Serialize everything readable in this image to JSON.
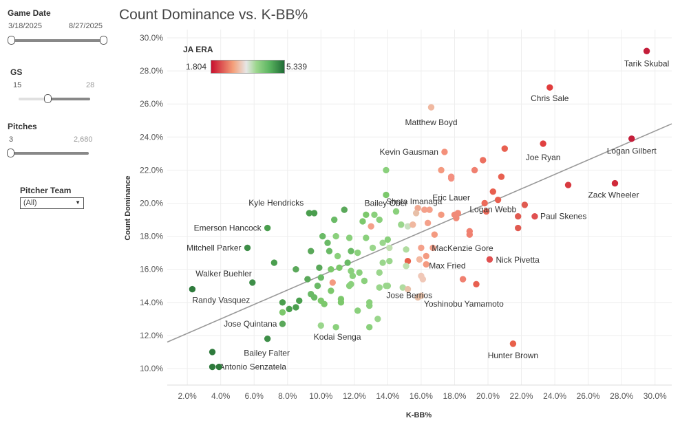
{
  "filters": {
    "game_date": {
      "title": "Game Date",
      "start": "3/18/2025",
      "end": "8/27/2025"
    },
    "gs": {
      "title": "GS",
      "min": "15",
      "max": "28",
      "value": 0.4
    },
    "pitches": {
      "title": "Pitches",
      "min": "3",
      "max": "2,680",
      "value": 0.0
    },
    "pitcher_team": {
      "title": "Pitcher Team",
      "selected": "(All)"
    }
  },
  "legend": {
    "title": "JA ERA",
    "min_label": "1.804",
    "max_label": "5.339",
    "colors": [
      "#c8102e",
      "#f4a07a",
      "#e6e6e6",
      "#9bd68c",
      "#1f6b35"
    ]
  },
  "chart_data": {
    "type": "scatter",
    "title": "Count Dominance vs. K-BB%",
    "xlabel": "K-BB%",
    "ylabel": "Count Dominance",
    "xlim": [
      0.8,
      31.0
    ],
    "ylim": [
      9.0,
      30.5
    ],
    "xticks": [
      "2.0%",
      "4.0%",
      "6.0%",
      "8.0%",
      "10.0%",
      "12.0%",
      "14.0%",
      "16.0%",
      "18.0%",
      "20.0%",
      "22.0%",
      "24.0%",
      "26.0%",
      "28.0%",
      "30.0%"
    ],
    "yticks": [
      "10.0%",
      "12.0%",
      "14.0%",
      "16.0%",
      "18.0%",
      "20.0%",
      "22.0%",
      "24.0%",
      "26.0%",
      "28.0%",
      "30.0%"
    ],
    "trend_line": {
      "x": [
        0.8,
        31.0
      ],
      "y": [
        11.6,
        24.8
      ]
    },
    "labeled_points": [
      {
        "name": "Tarik Skubal",
        "x": 29.5,
        "y": 29.2,
        "color": "#c41e3a"
      },
      {
        "name": "Chris Sale",
        "x": 23.7,
        "y": 27.0,
        "color": "#e03c3c"
      },
      {
        "name": "Matthew Boyd",
        "x": 16.6,
        "y": 25.8,
        "color": "#f0b8a0"
      },
      {
        "name": "Logan Gilbert",
        "x": 28.6,
        "y": 23.9,
        "color": "#c41e3a"
      },
      {
        "name": "Kevin Gausman",
        "x": 17.4,
        "y": 23.1,
        "color": "#f4907a"
      },
      {
        "name": "Joe Ryan",
        "x": 23.3,
        "y": 23.6,
        "color": "#e04040"
      },
      {
        "name": "Bailey Ober",
        "x": 13.9,
        "y": 20.5,
        "color": "#7cc86c"
      },
      {
        "name": "Eric Lauer",
        "x": 17.8,
        "y": 21.5,
        "color": "#f49080"
      },
      {
        "name": "Logan Webb",
        "x": 20.3,
        "y": 20.7,
        "color": "#e86050"
      },
      {
        "name": "Zack Wheeler",
        "x": 27.6,
        "y": 21.2,
        "color": "#d02a3a"
      },
      {
        "name": "Kyle Hendricks",
        "x": 9.3,
        "y": 19.4,
        "color": "#4a9e4e"
      },
      {
        "name": "Shota Imanaga",
        "x": 15.7,
        "y": 19.4,
        "color": "#e8c0a8"
      },
      {
        "name": "Emerson Hancock",
        "x": 6.8,
        "y": 18.5,
        "color": "#4a9e4e"
      },
      {
        "name": "Paul Skenes",
        "x": 22.8,
        "y": 19.2,
        "color": "#e05050"
      },
      {
        "name": "Mitchell Parker",
        "x": 5.6,
        "y": 17.3,
        "color": "#3e8e48"
      },
      {
        "name": "MacKenzie Gore",
        "x": 16.8,
        "y": 18.1,
        "color": "#f49a80"
      },
      {
        "name": "Walker Buehler",
        "x": 5.9,
        "y": 15.2,
        "color": "#3e8e48"
      },
      {
        "name": "Max Fried",
        "x": 16.3,
        "y": 16.3,
        "color": "#f49a80"
      },
      {
        "name": "Nick Pivetta",
        "x": 20.1,
        "y": 16.6,
        "color": "#e05050"
      },
      {
        "name": "Randy Vasquez",
        "x": 2.3,
        "y": 14.8,
        "color": "#2e7a3c"
      },
      {
        "name": "Yoshinobu Yamamoto",
        "x": 16.0,
        "y": 14.4,
        "color": "#e8c0a8"
      },
      {
        "name": "Jose Berrios",
        "x": 14.0,
        "y": 15.0,
        "color": "#9ad68c"
      },
      {
        "name": "Jose Quintana",
        "x": 7.7,
        "y": 12.7,
        "color": "#5aa85a"
      },
      {
        "name": "Kodai Senga",
        "x": 10.9,
        "y": 12.5,
        "color": "#8ad07c"
      },
      {
        "name": "Hunter Brown",
        "x": 21.5,
        "y": 11.5,
        "color": "#e8604a"
      },
      {
        "name": "Bailey Falter",
        "x": 6.8,
        "y": 11.8,
        "color": "#3e8e48"
      },
      {
        "name": "Antonio Senzatela",
        "x": 3.5,
        "y": 10.1,
        "color": "#2e7a3c"
      },
      {
        "name": "Antonio Senzatela (b)",
        "x": 3.9,
        "y": 10.1,
        "color": "#2e7a3c"
      },
      {
        "name": "Bailey Falter (b)",
        "x": 3.5,
        "y": 11.0,
        "color": "#2e7a3c"
      }
    ],
    "points": [
      {
        "x": 13.9,
        "y": 22.0,
        "color": "#8ad07c"
      },
      {
        "x": 17.2,
        "y": 22.0,
        "color": "#f49a80"
      },
      {
        "x": 17.8,
        "y": 21.6,
        "color": "#f49080"
      },
      {
        "x": 19.2,
        "y": 22.0,
        "color": "#f08070"
      },
      {
        "x": 19.7,
        "y": 22.6,
        "color": "#ec7060"
      },
      {
        "x": 21.0,
        "y": 23.3,
        "color": "#e86050"
      },
      {
        "x": 20.8,
        "y": 21.6,
        "color": "#e86050"
      },
      {
        "x": 24.8,
        "y": 21.1,
        "color": "#d83a40"
      },
      {
        "x": 11.4,
        "y": 19.6,
        "color": "#5aa85a"
      },
      {
        "x": 9.6,
        "y": 19.4,
        "color": "#4a9e4e"
      },
      {
        "x": 10.8,
        "y": 19.0,
        "color": "#6aba66"
      },
      {
        "x": 12.7,
        "y": 19.3,
        "color": "#7cc86c"
      },
      {
        "x": 13.2,
        "y": 19.3,
        "color": "#8ad07c"
      },
      {
        "x": 14.5,
        "y": 19.5,
        "color": "#8ad07c"
      },
      {
        "x": 15.8,
        "y": 19.7,
        "color": "#f0a890"
      },
      {
        "x": 16.2,
        "y": 19.6,
        "color": "#f4a08a"
      },
      {
        "x": 16.5,
        "y": 19.6,
        "color": "#f4a08a"
      },
      {
        "x": 17.2,
        "y": 19.3,
        "color": "#f49a80"
      },
      {
        "x": 18.0,
        "y": 19.3,
        "color": "#f08a78"
      },
      {
        "x": 18.2,
        "y": 19.4,
        "color": "#f08a78"
      },
      {
        "x": 18.1,
        "y": 19.1,
        "color": "#f08a78"
      },
      {
        "x": 19.9,
        "y": 19.5,
        "color": "#ec6a5a"
      },
      {
        "x": 21.8,
        "y": 19.2,
        "color": "#e05a50"
      },
      {
        "x": 22.2,
        "y": 19.9,
        "color": "#e05a50"
      },
      {
        "x": 20.6,
        "y": 20.2,
        "color": "#e86050"
      },
      {
        "x": 19.8,
        "y": 20.0,
        "color": "#ec6a5a"
      },
      {
        "x": 12.5,
        "y": 18.9,
        "color": "#7cc86c"
      },
      {
        "x": 13.5,
        "y": 19.0,
        "color": "#8ad07c"
      },
      {
        "x": 13.0,
        "y": 18.6,
        "color": "#f4a08a"
      },
      {
        "x": 14.8,
        "y": 18.7,
        "color": "#9ad68c"
      },
      {
        "x": 15.2,
        "y": 18.6,
        "color": "#c8e0c0"
      },
      {
        "x": 15.5,
        "y": 18.7,
        "color": "#f0b8a0"
      },
      {
        "x": 16.4,
        "y": 18.8,
        "color": "#f4a08a"
      },
      {
        "x": 18.9,
        "y": 18.3,
        "color": "#f08070"
      },
      {
        "x": 18.9,
        "y": 18.1,
        "color": "#f08070"
      },
      {
        "x": 21.8,
        "y": 18.5,
        "color": "#e05a50"
      },
      {
        "x": 10.1,
        "y": 18.0,
        "color": "#6aba66"
      },
      {
        "x": 10.9,
        "y": 18.0,
        "color": "#8ad07c"
      },
      {
        "x": 11.7,
        "y": 17.9,
        "color": "#8ad07c"
      },
      {
        "x": 12.7,
        "y": 17.9,
        "color": "#8ad07c"
      },
      {
        "x": 13.7,
        "y": 17.6,
        "color": "#9ad68c"
      },
      {
        "x": 14.0,
        "y": 17.8,
        "color": "#8ad07c"
      },
      {
        "x": 10.4,
        "y": 17.6,
        "color": "#6aba66"
      },
      {
        "x": 9.4,
        "y": 17.1,
        "color": "#5aa85a"
      },
      {
        "x": 10.5,
        "y": 17.1,
        "color": "#6aba66"
      },
      {
        "x": 11.0,
        "y": 16.8,
        "color": "#8ad07c"
      },
      {
        "x": 11.8,
        "y": 17.1,
        "color": "#6aba66"
      },
      {
        "x": 12.2,
        "y": 17.0,
        "color": "#8ad07c"
      },
      {
        "x": 13.1,
        "y": 17.3,
        "color": "#9ad68c"
      },
      {
        "x": 14.1,
        "y": 17.3,
        "color": "#c0e0b0"
      },
      {
        "x": 15.1,
        "y": 17.2,
        "color": "#b0dca0"
      },
      {
        "x": 16.0,
        "y": 17.3,
        "color": "#f4a08a"
      },
      {
        "x": 16.7,
        "y": 17.3,
        "color": "#f4a08a"
      },
      {
        "x": 16.3,
        "y": 16.8,
        "color": "#f49a80"
      },
      {
        "x": 8.5,
        "y": 16.0,
        "color": "#5aa85a"
      },
      {
        "x": 7.2,
        "y": 16.4,
        "color": "#4a9e4e"
      },
      {
        "x": 9.9,
        "y": 16.1,
        "color": "#5aa85a"
      },
      {
        "x": 10.6,
        "y": 16.0,
        "color": "#7cc86c"
      },
      {
        "x": 11.6,
        "y": 16.4,
        "color": "#6aba66"
      },
      {
        "x": 11.1,
        "y": 16.1,
        "color": "#7cc86c"
      },
      {
        "x": 11.8,
        "y": 15.9,
        "color": "#8ad07c"
      },
      {
        "x": 11.9,
        "y": 15.6,
        "color": "#8ad07c"
      },
      {
        "x": 12.3,
        "y": 15.8,
        "color": "#8ad07c"
      },
      {
        "x": 12.6,
        "y": 15.3,
        "color": "#8ad07c"
      },
      {
        "x": 13.5,
        "y": 15.8,
        "color": "#9ad68c"
      },
      {
        "x": 13.7,
        "y": 16.4,
        "color": "#9ad68c"
      },
      {
        "x": 14.1,
        "y": 16.5,
        "color": "#9ad68c"
      },
      {
        "x": 15.2,
        "y": 16.5,
        "color": "#e8604a"
      },
      {
        "x": 15.1,
        "y": 16.2,
        "color": "#c0e0b0"
      },
      {
        "x": 15.9,
        "y": 16.6,
        "color": "#f4b8a0"
      },
      {
        "x": 16.0,
        "y": 15.6,
        "color": "#f0c8b8"
      },
      {
        "x": 16.1,
        "y": 15.4,
        "color": "#f0c8b8"
      },
      {
        "x": 9.2,
        "y": 15.4,
        "color": "#5aa85a"
      },
      {
        "x": 10.0,
        "y": 15.5,
        "color": "#6aba66"
      },
      {
        "x": 9.8,
        "y": 15.0,
        "color": "#6aba66"
      },
      {
        "x": 10.7,
        "y": 15.2,
        "color": "#f49a80"
      },
      {
        "x": 11.7,
        "y": 15.0,
        "color": "#8ad07c"
      },
      {
        "x": 11.8,
        "y": 15.1,
        "color": "#8ad07c"
      },
      {
        "x": 13.5,
        "y": 14.9,
        "color": "#9ad68c"
      },
      {
        "x": 13.9,
        "y": 15.0,
        "color": "#9ad68c"
      },
      {
        "x": 14.9,
        "y": 14.9,
        "color": "#b0dca0"
      },
      {
        "x": 15.2,
        "y": 14.8,
        "color": "#e8c0a8"
      },
      {
        "x": 18.5,
        "y": 15.4,
        "color": "#f08070"
      },
      {
        "x": 19.3,
        "y": 15.1,
        "color": "#e86050"
      },
      {
        "x": 7.7,
        "y": 14.0,
        "color": "#4a9e4e"
      },
      {
        "x": 8.7,
        "y": 14.1,
        "color": "#4a9e4e"
      },
      {
        "x": 8.5,
        "y": 13.7,
        "color": "#4a9e4e"
      },
      {
        "x": 8.1,
        "y": 13.6,
        "color": "#4a9e4e"
      },
      {
        "x": 9.4,
        "y": 14.5,
        "color": "#6aba66"
      },
      {
        "x": 9.6,
        "y": 14.3,
        "color": "#6aba66"
      },
      {
        "x": 10.0,
        "y": 14.1,
        "color": "#7cc86c"
      },
      {
        "x": 10.2,
        "y": 13.9,
        "color": "#7cc86c"
      },
      {
        "x": 10.6,
        "y": 14.7,
        "color": "#7cc86c"
      },
      {
        "x": 11.2,
        "y": 14.2,
        "color": "#7cc86c"
      },
      {
        "x": 11.2,
        "y": 14.0,
        "color": "#7cc86c"
      },
      {
        "x": 12.2,
        "y": 13.5,
        "color": "#8ad07c"
      },
      {
        "x": 12.9,
        "y": 14.0,
        "color": "#8ad07c"
      },
      {
        "x": 12.9,
        "y": 13.8,
        "color": "#8ad07c"
      },
      {
        "x": 13.4,
        "y": 13.0,
        "color": "#9ad68c"
      },
      {
        "x": 15.8,
        "y": 14.3,
        "color": "#e8c0a8"
      },
      {
        "x": 7.7,
        "y": 13.4,
        "color": "#7cc86c"
      },
      {
        "x": 10.0,
        "y": 12.6,
        "color": "#9ad68c"
      },
      {
        "x": 12.9,
        "y": 12.5,
        "color": "#8ad07c"
      }
    ]
  }
}
